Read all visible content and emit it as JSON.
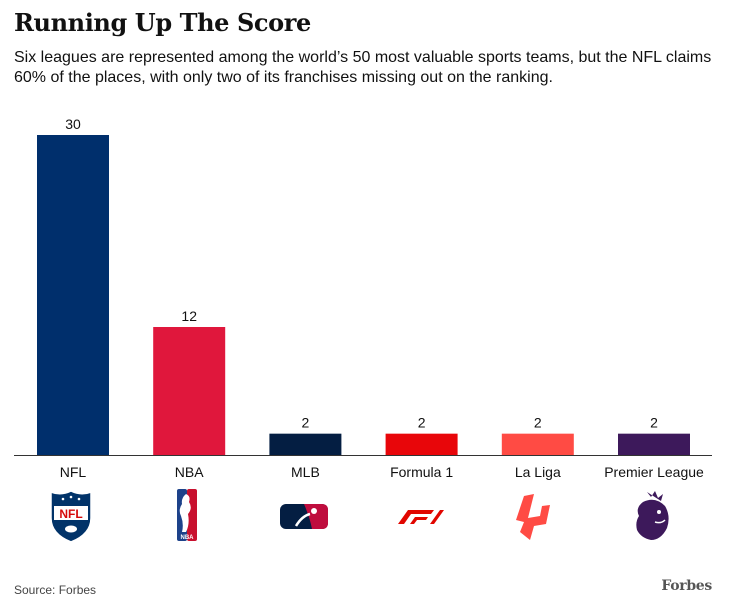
{
  "header": {
    "title": "Running Up The Score",
    "subtitle": "Six leagues are represented among the world’s 50 most valuable sports teams, but the NFL claims 60% of the places, with only two of its franchises missing out on the ranking."
  },
  "chart_data": {
    "type": "bar",
    "title": "Running Up The Score",
    "categories": [
      "NFL",
      "NBA",
      "MLB",
      "Formula 1",
      "La Liga",
      "Premier League"
    ],
    "values": [
      30,
      12,
      2,
      2,
      2,
      2
    ],
    "colors": [
      "#002f6c",
      "#e0173c",
      "#041e42",
      "#e8060a",
      "#ff4b44",
      "#3d195b"
    ],
    "data_labels": [
      "30",
      "12",
      "2",
      "2",
      "2",
      "2"
    ],
    "xlabel": "",
    "ylabel": "",
    "ylim": [
      0,
      30
    ],
    "grid": false,
    "legend": "none"
  },
  "logos": [
    {
      "icon": "nfl-logo-icon",
      "text": "NFL"
    },
    {
      "icon": "nba-logo-icon",
      "text": "NBA"
    },
    {
      "icon": "mlb-logo-icon"
    },
    {
      "icon": "formula-1-logo-icon"
    },
    {
      "icon": "la-liga-logo-icon"
    },
    {
      "icon": "premier-league-logo-icon"
    }
  ],
  "footer": {
    "source": "Source: Forbes",
    "brand": "Forbes"
  }
}
